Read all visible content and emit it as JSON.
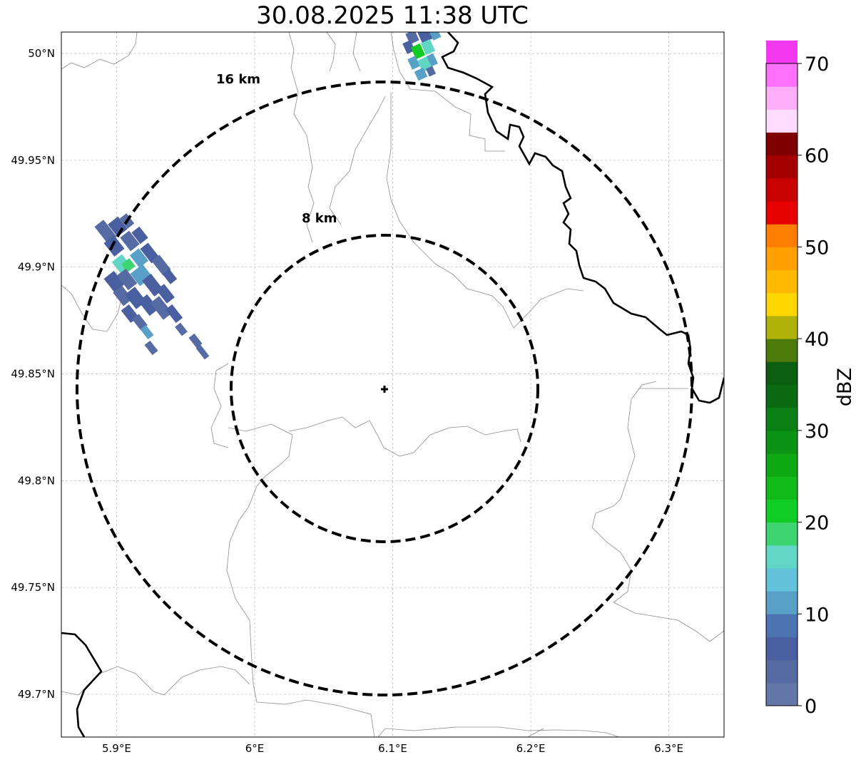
{
  "title": "30.08.2025 11:38 UTC",
  "map": {
    "lon_ticks": [
      "5.9°E",
      "6°E",
      "6.1°E",
      "6.2°E",
      "6.3°E"
    ],
    "lon_values": [
      5.9,
      6.0,
      6.1,
      6.2,
      6.3
    ],
    "lat_ticks": [
      "50°N",
      "49.95°N",
      "49.9°N",
      "49.85°N",
      "49.8°N",
      "49.75°N",
      "49.7°N"
    ],
    "lat_values": [
      50.0,
      49.95,
      49.9,
      49.85,
      49.8,
      49.75,
      49.7
    ],
    "lon_range": [
      5.86,
      6.34
    ],
    "lat_range": [
      49.68,
      50.01
    ],
    "radar_site": {
      "lon": 6.095,
      "lat": 49.843
    },
    "range_rings": [
      {
        "radius_km": 8,
        "label": "8 km"
      },
      {
        "radius_km": 16,
        "label": "16 km"
      }
    ]
  },
  "colorbar": {
    "label": "dBZ",
    "ticks": [
      "0",
      "10",
      "20",
      "30",
      "40",
      "50",
      "60",
      "70"
    ],
    "min": 0,
    "max": 70,
    "step": 2.5,
    "colors": [
      "#6277a8",
      "#566ba3",
      "#4a5fa0",
      "#4b74b0",
      "#59a0c9",
      "#63c2dc",
      "#61d6c4",
      "#3dd571",
      "#10cc23",
      "#11bb17",
      "#0ea813",
      "#0b9314",
      "#0a7f13",
      "#0a6a12",
      "#0b5e0f",
      "#4c7a0b",
      "#b0b20a",
      "#fed700",
      "#ffb900",
      "#ff9f00",
      "#ff7e00",
      "#e60000",
      "#c80000",
      "#a50000",
      "#7f0000",
      "#ffdcfe",
      "#ffaef9",
      "#fe71fa",
      "#f138ee"
    ]
  },
  "echo_colors": {
    "weak": "#4a5fa0",
    "weak2": "#566ba3",
    "light": "#59a0c9",
    "cyan": "#61d6c4",
    "green": "#10cc23",
    "mint": "#3dd571"
  }
}
